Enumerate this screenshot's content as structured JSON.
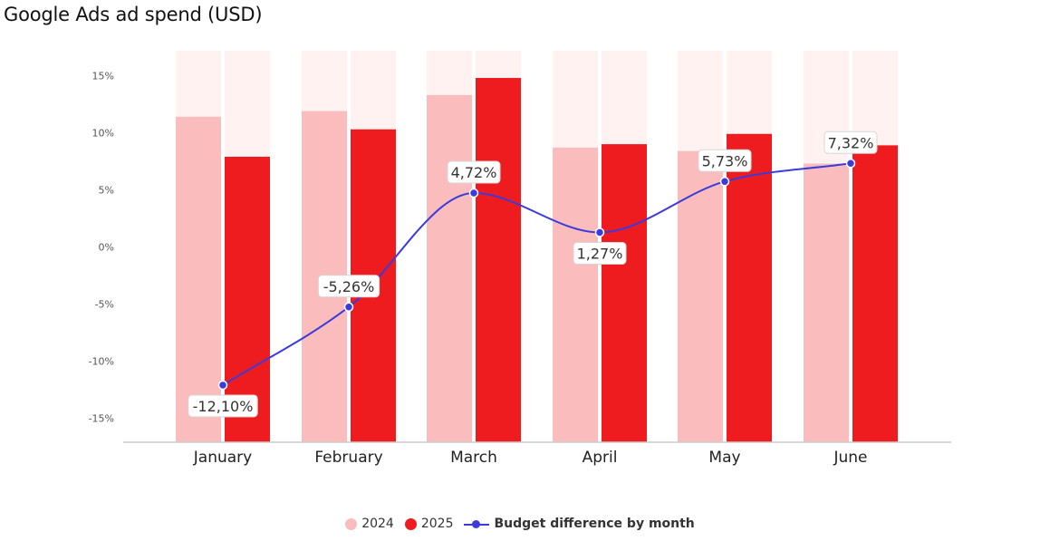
{
  "chart_data": {
    "type": "bar",
    "title": "Google Ads ad spend (USD)",
    "categories": [
      "January",
      "February",
      "March",
      "April",
      "May",
      "June"
    ],
    "y_ticks": [
      "15%",
      "10%",
      "5%",
      "0%",
      "-5%",
      "-10%",
      "-15%"
    ],
    "ylim": [
      -17,
      17
    ],
    "series": [
      {
        "name": "2024",
        "color": "#fabcbc",
        "values": [
          11.4,
          11.9,
          13.3,
          8.7,
          8.4,
          7.3
        ]
      },
      {
        "name": "2025",
        "color": "#ee1c1f",
        "values": [
          7.9,
          10.3,
          14.8,
          9.0,
          9.9,
          8.9
        ]
      }
    ],
    "background_bar_color": "#fff2f1",
    "line_series": {
      "name": "Budget difference by month",
      "color": "#3b3bdc",
      "values": [
        -12.1,
        -5.26,
        4.72,
        1.27,
        5.73,
        7.32
      ],
      "labels": [
        "-12,10%",
        "-5,26%",
        "4,72%",
        "1,27%",
        "5,73%",
        "7,32%"
      ],
      "label_positions": [
        "below",
        "above",
        "above",
        "below",
        "above",
        "above"
      ]
    },
    "legend_position": "bottom-center",
    "grid": false
  }
}
